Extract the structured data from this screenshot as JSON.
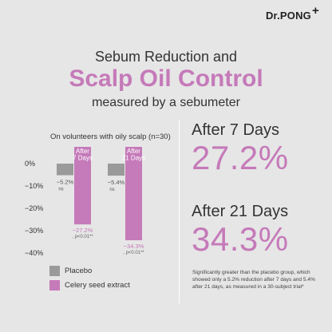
{
  "brand": {
    "name": "Dr.PONG",
    "mark": "+"
  },
  "heading": {
    "line1": "Sebum Reduction and",
    "line2": "Scalp Oil Control",
    "line3": "measured by a sebumeter"
  },
  "chart_data": {
    "type": "bar",
    "subtitle": "On volunteers with oily scalp (n=30)",
    "categories": [
      "After\n7 Days",
      "After\n21 Days"
    ],
    "series": [
      {
        "name": "Placebo",
        "color": "#9a9a9a",
        "values": [
          -5.2,
          -5.4
        ],
        "labels": [
          "−5.2%",
          "−5.4%"
        ],
        "sig": [
          "ns",
          "ns"
        ]
      },
      {
        "name": "Celery seed extract",
        "color": "#c57ab9",
        "values": [
          -27.2,
          -34.3
        ],
        "labels": [
          "−27.2%",
          "−34.3%"
        ],
        "sig": [
          ", p<0.01**",
          ", p<0.01**"
        ]
      }
    ],
    "ylim": [
      -40,
      0
    ],
    "yticks": [
      0,
      -10,
      -20,
      -30,
      -40
    ],
    "ytick_labels": [
      "0%",
      "−10%",
      "−20%",
      "−30%",
      "−40%"
    ],
    "grid": false,
    "legend_position": "bottom-left"
  },
  "results": [
    {
      "label": "After 7 Days",
      "value": "27.2%"
    },
    {
      "label": "After 21 Days",
      "value": "34.3%"
    }
  ],
  "footnote": "Significantly greater than the placebo group, which showed only a 5.2% reduction after 7 days and 5.4% after 21 days, as measured in a 30-subject trial*",
  "colors": {
    "accent": "#c57ab9",
    "placebo": "#9a9a9a",
    "background": "#e6e6e6"
  }
}
